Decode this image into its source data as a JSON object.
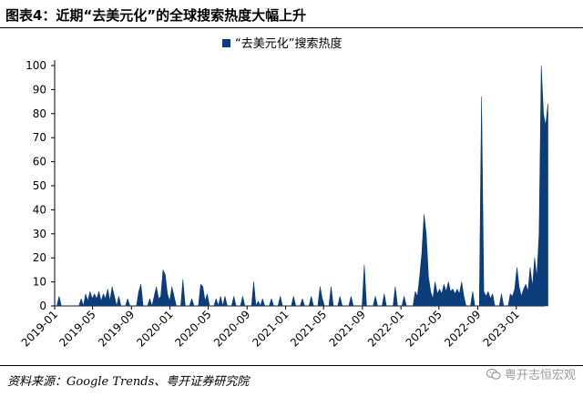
{
  "header": {
    "title": "图表4：近期“去美元化”的全球搜索热度大幅上升"
  },
  "footer": {
    "source": "资料来源：Google Trends、粤开证券研究院",
    "watermark": "粤开志恒宏观",
    "watermark_icon": "wechat-icon"
  },
  "chart_data": {
    "type": "area",
    "title": "",
    "xlabel": "",
    "ylabel": "",
    "ylim": [
      0,
      100
    ],
    "yticks": [
      0,
      10,
      20,
      30,
      40,
      50,
      60,
      70,
      80,
      90,
      100
    ],
    "xlim": [
      "2019-01",
      "2023-04"
    ],
    "xticks": [
      "2019-01",
      "2019-05",
      "2019-09",
      "2020-01",
      "2020-05",
      "2020-09",
      "2021-01",
      "2021-05",
      "2021-09",
      "2022-01",
      "2022-05",
      "2022-09",
      "2023-01"
    ],
    "legend": {
      "position": "top-center"
    },
    "grid": false,
    "series": [
      {
        "name": "“去美元化”搜索热度",
        "color": "#0a3d7a",
        "points": [
          [
            "2019-01-01",
            0
          ],
          [
            "2019-01-08",
            0
          ],
          [
            "2019-01-15",
            4
          ],
          [
            "2019-01-22",
            0
          ],
          [
            "2019-02-05",
            0
          ],
          [
            "2019-03-05",
            0
          ],
          [
            "2019-03-19",
            0
          ],
          [
            "2019-03-26",
            3
          ],
          [
            "2019-04-02",
            0
          ],
          [
            "2019-04-09",
            5
          ],
          [
            "2019-04-16",
            2
          ],
          [
            "2019-04-23",
            6
          ],
          [
            "2019-04-30",
            3
          ],
          [
            "2019-05-07",
            5
          ],
          [
            "2019-05-14",
            3
          ],
          [
            "2019-05-21",
            6
          ],
          [
            "2019-05-28",
            2
          ],
          [
            "2019-06-04",
            5
          ],
          [
            "2019-06-11",
            3
          ],
          [
            "2019-06-18",
            7
          ],
          [
            "2019-06-25",
            2
          ],
          [
            "2019-07-02",
            8
          ],
          [
            "2019-07-09",
            4
          ],
          [
            "2019-07-16",
            0
          ],
          [
            "2019-07-23",
            4
          ],
          [
            "2019-07-30",
            0
          ],
          [
            "2019-08-13",
            0
          ],
          [
            "2019-08-20",
            3
          ],
          [
            "2019-08-27",
            0
          ],
          [
            "2019-09-17",
            0
          ],
          [
            "2019-09-24",
            6
          ],
          [
            "2019-10-01",
            9
          ],
          [
            "2019-10-08",
            0
          ],
          [
            "2019-10-22",
            0
          ],
          [
            "2019-10-29",
            3
          ],
          [
            "2019-11-05",
            0
          ],
          [
            "2019-11-12",
            4
          ],
          [
            "2019-11-19",
            8
          ],
          [
            "2019-11-26",
            3
          ],
          [
            "2019-12-03",
            4
          ],
          [
            "2019-12-10",
            15
          ],
          [
            "2019-12-17",
            13
          ],
          [
            "2019-12-24",
            5
          ],
          [
            "2019-12-31",
            2
          ],
          [
            "2020-01-07",
            8
          ],
          [
            "2020-01-14",
            4
          ],
          [
            "2020-01-21",
            0
          ],
          [
            "2020-02-04",
            0
          ],
          [
            "2020-02-11",
            11
          ],
          [
            "2020-02-18",
            0
          ],
          [
            "2020-03-03",
            0
          ],
          [
            "2020-03-10",
            3
          ],
          [
            "2020-03-17",
            0
          ],
          [
            "2020-03-31",
            0
          ],
          [
            "2020-04-07",
            9
          ],
          [
            "2020-04-14",
            8
          ],
          [
            "2020-04-21",
            2
          ],
          [
            "2020-04-28",
            5
          ],
          [
            "2020-05-05",
            0
          ],
          [
            "2020-05-19",
            0
          ],
          [
            "2020-05-26",
            3
          ],
          [
            "2020-06-02",
            0
          ],
          [
            "2020-06-09",
            4
          ],
          [
            "2020-06-16",
            0
          ],
          [
            "2020-06-23",
            4
          ],
          [
            "2020-06-30",
            0
          ],
          [
            "2020-07-14",
            0
          ],
          [
            "2020-07-21",
            4
          ],
          [
            "2020-07-28",
            0
          ],
          [
            "2020-08-11",
            0
          ],
          [
            "2020-08-18",
            4
          ],
          [
            "2020-08-25",
            0
          ],
          [
            "2020-09-15",
            0
          ],
          [
            "2020-09-22",
            10
          ],
          [
            "2020-09-29",
            0
          ],
          [
            "2020-10-06",
            2
          ],
          [
            "2020-10-13",
            0
          ],
          [
            "2020-10-20",
            3
          ],
          [
            "2020-10-27",
            0
          ],
          [
            "2020-11-10",
            0
          ],
          [
            "2020-11-17",
            3
          ],
          [
            "2020-11-24",
            0
          ],
          [
            "2020-12-08",
            0
          ],
          [
            "2020-12-15",
            4
          ],
          [
            "2020-12-22",
            0
          ],
          [
            "2021-01-19",
            0
          ],
          [
            "2021-01-26",
            4
          ],
          [
            "2021-02-02",
            0
          ],
          [
            "2021-02-16",
            0
          ],
          [
            "2021-02-23",
            3
          ],
          [
            "2021-03-02",
            0
          ],
          [
            "2021-03-16",
            0
          ],
          [
            "2021-03-23",
            4
          ],
          [
            "2021-03-30",
            0
          ],
          [
            "2021-04-13",
            0
          ],
          [
            "2021-04-20",
            8
          ],
          [
            "2021-04-27",
            3
          ],
          [
            "2021-05-04",
            0
          ],
          [
            "2021-05-18",
            0
          ],
          [
            "2021-05-25",
            8
          ],
          [
            "2021-06-01",
            0
          ],
          [
            "2021-06-15",
            0
          ],
          [
            "2021-06-22",
            4
          ],
          [
            "2021-06-29",
            0
          ],
          [
            "2021-07-20",
            0
          ],
          [
            "2021-07-27",
            4
          ],
          [
            "2021-08-03",
            0
          ],
          [
            "2021-08-31",
            0
          ],
          [
            "2021-09-07",
            17
          ],
          [
            "2021-09-14",
            0
          ],
          [
            "2021-10-05",
            0
          ],
          [
            "2021-10-12",
            4
          ],
          [
            "2021-10-19",
            0
          ],
          [
            "2021-11-02",
            0
          ],
          [
            "2021-11-09",
            5
          ],
          [
            "2021-11-16",
            0
          ],
          [
            "2021-12-07",
            0
          ],
          [
            "2021-12-14",
            8
          ],
          [
            "2021-12-21",
            0
          ],
          [
            "2022-01-04",
            0
          ],
          [
            "2022-01-11",
            4
          ],
          [
            "2022-01-18",
            0
          ],
          [
            "2022-02-08",
            0
          ],
          [
            "2022-02-15",
            6
          ],
          [
            "2022-02-22",
            4
          ],
          [
            "2022-03-01",
            12
          ],
          [
            "2022-03-08",
            22
          ],
          [
            "2022-03-15",
            38
          ],
          [
            "2022-03-22",
            30
          ],
          [
            "2022-03-29",
            12
          ],
          [
            "2022-04-05",
            6
          ],
          [
            "2022-04-12",
            3
          ],
          [
            "2022-04-19",
            10
          ],
          [
            "2022-04-26",
            5
          ],
          [
            "2022-05-03",
            7
          ],
          [
            "2022-05-10",
            5
          ],
          [
            "2022-05-17",
            9
          ],
          [
            "2022-05-24",
            6
          ],
          [
            "2022-05-31",
            10
          ],
          [
            "2022-06-07",
            6
          ],
          [
            "2022-06-14",
            7
          ],
          [
            "2022-06-21",
            5
          ],
          [
            "2022-06-28",
            7
          ],
          [
            "2022-07-05",
            5
          ],
          [
            "2022-07-12",
            10
          ],
          [
            "2022-07-19",
            4
          ],
          [
            "2022-07-26",
            0
          ],
          [
            "2022-08-09",
            0
          ],
          [
            "2022-08-16",
            6
          ],
          [
            "2022-08-23",
            0
          ],
          [
            "2022-09-06",
            0
          ],
          [
            "2022-09-13",
            87
          ],
          [
            "2022-09-20",
            6
          ],
          [
            "2022-09-27",
            4
          ],
          [
            "2022-10-04",
            6
          ],
          [
            "2022-10-11",
            3
          ],
          [
            "2022-10-18",
            5
          ],
          [
            "2022-10-25",
            0
          ],
          [
            "2022-11-08",
            0
          ],
          [
            "2022-11-15",
            5
          ],
          [
            "2022-11-22",
            0
          ],
          [
            "2022-12-06",
            0
          ],
          [
            "2022-12-13",
            5
          ],
          [
            "2022-12-20",
            4
          ],
          [
            "2022-12-27",
            7
          ],
          [
            "2023-01-03",
            16
          ],
          [
            "2023-01-10",
            8
          ],
          [
            "2023-01-17",
            4
          ],
          [
            "2023-01-24",
            7
          ],
          [
            "2023-01-31",
            9
          ],
          [
            "2023-02-07",
            6
          ],
          [
            "2023-02-14",
            16
          ],
          [
            "2023-02-21",
            8
          ],
          [
            "2023-02-28",
            20
          ],
          [
            "2023-03-07",
            12
          ],
          [
            "2023-03-14",
            30
          ],
          [
            "2023-03-21",
            100
          ],
          [
            "2023-03-28",
            80
          ],
          [
            "2023-04-04",
            75
          ],
          [
            "2023-04-11",
            84
          ]
        ]
      }
    ]
  }
}
